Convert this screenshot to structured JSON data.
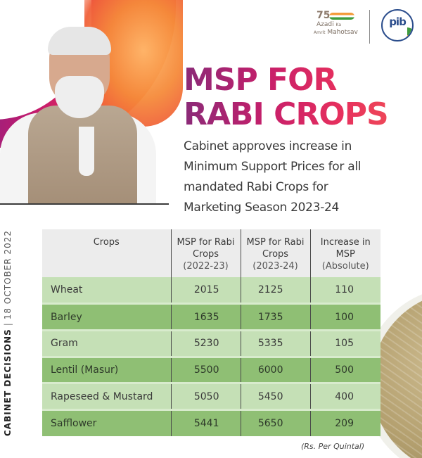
{
  "header": {
    "logos": {
      "azadi": {
        "number": "75",
        "line1_a": "Azadi",
        "line1_b": "Ka",
        "line2_a": "Amrit",
        "line2_b": "Mahotsav"
      },
      "pib": {
        "text": "pib"
      }
    },
    "title": [
      "MSP FOR",
      "RABI CROPS"
    ],
    "subtitle": [
      "Cabinet approves increase in",
      "Minimum Support Prices for all",
      "mandated Rabi Crops for",
      "Marketing Season 2023-24"
    ],
    "title_gradient": [
      "#8a2a78",
      "#c71f6a",
      "#e7305d",
      "#ef4a58"
    ]
  },
  "side_label": {
    "category": "CABINET DECISIONS",
    "separator": "|",
    "date": "18 OCTOBER 2022"
  },
  "table": {
    "headers": [
      {
        "lines": [
          "Crops"
        ]
      },
      {
        "lines": [
          "MSP for Rabi",
          "Crops",
          "(2022-23)"
        ]
      },
      {
        "lines": [
          "MSP for Rabi",
          "Crops",
          "(2023-24)"
        ]
      },
      {
        "lines": [
          "Increase in",
          "MSP",
          "(Absolute)"
        ]
      }
    ],
    "rows": [
      {
        "crop": "Wheat",
        "msp_2022_23": "2015",
        "msp_2023_24": "2125",
        "increase": "110"
      },
      {
        "crop": "Barley",
        "msp_2022_23": "1635",
        "msp_2023_24": "1735",
        "increase": "100"
      },
      {
        "crop": "Gram",
        "msp_2022_23": "5230",
        "msp_2023_24": "5335",
        "increase": "105"
      },
      {
        "crop": "Lentil (Masur)",
        "msp_2022_23": "5500",
        "msp_2023_24": "6000",
        "increase": "500"
      },
      {
        "crop": "Rapeseed & Mustard",
        "msp_2022_23": "5050",
        "msp_2023_24": "5450",
        "increase": "400"
      },
      {
        "crop": "Safflower",
        "msp_2022_23": "5441",
        "msp_2023_24": "5650",
        "increase": "209"
      }
    ],
    "colors": {
      "header": "#ececec",
      "row_light": "#c5e0b6",
      "row_dark": "#8fbf74"
    },
    "unit_note": "(Rs. Per Quintal)"
  }
}
